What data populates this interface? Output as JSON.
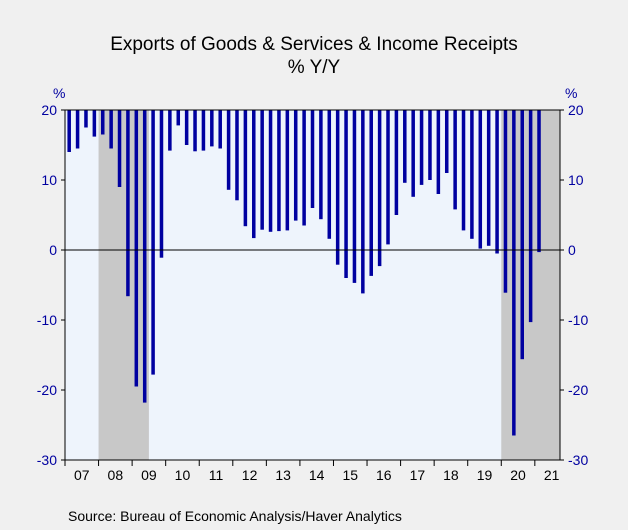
{
  "chart_data": {
    "type": "bar",
    "title": "Exports of Goods & Services & Income Receipts",
    "subtitle": "% Y/Y",
    "left_unit": "%",
    "right_unit": "%",
    "ylim": [
      -30,
      20
    ],
    "yticks": [
      20,
      10,
      0,
      -10,
      -20,
      -30
    ],
    "x_tick_labels": [
      "07",
      "08",
      "09",
      "10",
      "11",
      "12",
      "13",
      "14",
      "15",
      "16",
      "17",
      "18",
      "19",
      "20",
      "21"
    ],
    "x_start": 2007.0,
    "x_end": 2021.75,
    "bar_color": "#0000a0",
    "recession_color": "#c8c8c8",
    "plot_background": "#eef4fc",
    "recession_bands": [
      [
        2008.0,
        2009.5
      ],
      [
        2020.0,
        2021.75
      ]
    ],
    "grid": false,
    "legend": "none",
    "source": "Source:  Bureau of Economic Analysis/Haver Analytics",
    "series": [
      {
        "x": [
          2007.0,
          2007.25,
          2007.5,
          2007.75,
          2008.0,
          2008.25,
          2008.5,
          2008.75,
          2009.0,
          2009.25,
          2009.5,
          2009.75,
          2010.0,
          2010.25,
          2010.5,
          2010.75,
          2011.0,
          2011.25,
          2011.5,
          2011.75,
          2012.0,
          2012.25,
          2012.5,
          2012.75,
          2013.0,
          2013.25,
          2013.5,
          2013.75,
          2014.0,
          2014.25,
          2014.5,
          2014.75,
          2015.0,
          2015.25,
          2015.5,
          2015.75,
          2016.0,
          2016.25,
          2016.5,
          2016.75,
          2017.0,
          2017.25,
          2017.5,
          2017.75,
          2018.0,
          2018.25,
          2018.5,
          2018.75,
          2019.0,
          2019.25,
          2019.5,
          2019.75,
          2020.0,
          2020.25,
          2020.5,
          2020.75,
          2021.0
        ],
        "values": [
          14.0,
          14.5,
          17.5,
          16.2,
          16.5,
          14.5,
          9.0,
          -6.6,
          -19.5,
          -21.8,
          -17.8,
          -1.1,
          14.2,
          17.8,
          15.0,
          14.1,
          14.2,
          14.8,
          14.5,
          8.6,
          7.1,
          3.4,
          1.7,
          2.9,
          2.6,
          2.7,
          2.8,
          4.2,
          3.5,
          6.0,
          4.4,
          1.6,
          -2.1,
          -4.0,
          -4.7,
          -6.2,
          -3.7,
          -2.3,
          0.8,
          5.0,
          9.6,
          7.6,
          9.3,
          10.0,
          8.0,
          11.0,
          5.8,
          2.8,
          1.6,
          0.2,
          0.6,
          -0.5,
          -6.1,
          -26.5,
          -15.6,
          -10.3,
          -0.3
        ]
      }
    ]
  }
}
